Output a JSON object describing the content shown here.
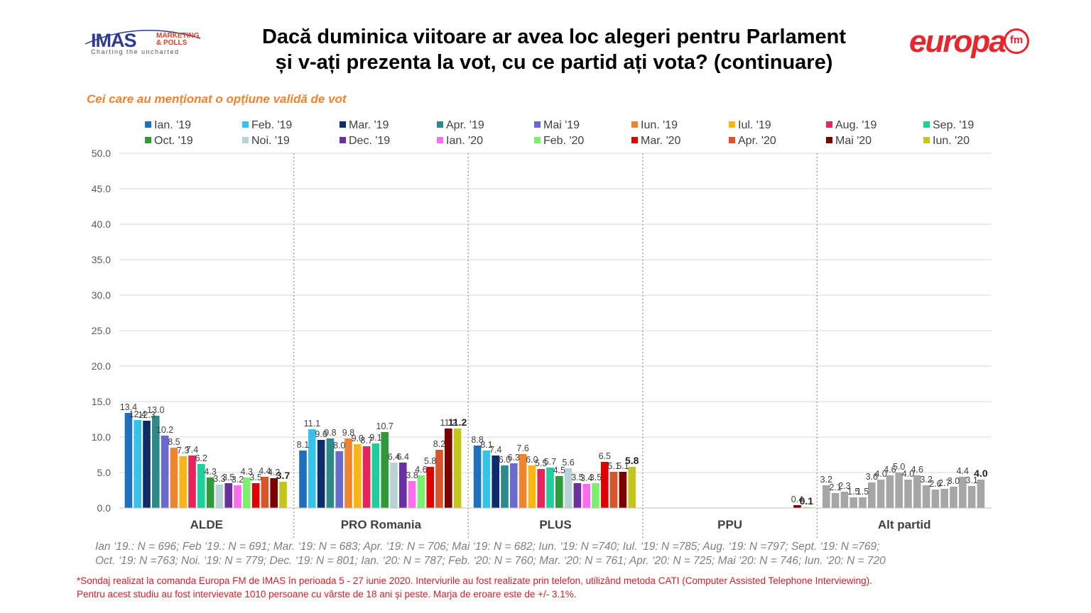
{
  "title": {
    "line1": "Dacă duminica viitoare ar avea loc alegeri pentru Parlament",
    "line2": "și v-ați prezenta la vot, cu ce partid ați vota? (continuare)"
  },
  "subtitle": "Cei care au menționat o opțiune validă de vot",
  "logos": {
    "imas": {
      "name": "IMAS",
      "sub1": "MARKETING",
      "sub2": "& POLLS",
      "tagline": "Charting the uncharted"
    },
    "europa": {
      "name": "europa",
      "fm": "fm"
    }
  },
  "chart_data": {
    "type": "bar",
    "ylim": [
      0,
      50
    ],
    "yticks": [
      "0.0",
      "5.0",
      "10.0",
      "15.0",
      "20.0",
      "25.0",
      "30.0",
      "35.0",
      "40.0",
      "45.0",
      "50.0"
    ],
    "grid": true,
    "legend_position": "top",
    "categories": [
      "ALDE",
      "PRO Romania",
      "PLUS",
      "PPU",
      "Alt partid"
    ],
    "series": [
      {
        "name": "Ian. '19",
        "color": "#1f6fbf"
      },
      {
        "name": "Feb. '19",
        "color": "#35c3ec"
      },
      {
        "name": "Mar. '19",
        "color": "#0d2c6b"
      },
      {
        "name": "Apr. '19",
        "color": "#2d8a8a"
      },
      {
        "name": "Mai '19",
        "color": "#6a6acd"
      },
      {
        "name": "Iun. '19",
        "color": "#f0842c"
      },
      {
        "name": "Iul. '19",
        "color": "#f8b514"
      },
      {
        "name": "Aug. '19",
        "color": "#e8245a"
      },
      {
        "name": "Sep. '19",
        "color": "#1fcf9b"
      },
      {
        "name": "Oct. '19",
        "color": "#2f9a3a"
      },
      {
        "name": "Noi. '19",
        "color": "#b8d2d8"
      },
      {
        "name": "Dec. '19",
        "color": "#6b2fa0"
      },
      {
        "name": "Ian. '20",
        "color": "#ff6cf0"
      },
      {
        "name": "Feb. '20",
        "color": "#7cf06c"
      },
      {
        "name": "Mar. '20",
        "color": "#e00000"
      },
      {
        "name": "Apr. '20",
        "color": "#d8542a"
      },
      {
        "name": "Mai '20",
        "color": "#7a0000"
      },
      {
        "name": "Iun. '20",
        "color": "#c6c61a"
      }
    ],
    "values": [
      [
        "13.4",
        "12.4",
        "12.3",
        "13.0",
        "10.2",
        "8.5",
        "7.3",
        "7.4",
        "6.2",
        "4.3",
        "3.3",
        "3.5",
        "3.2",
        "4.3",
        "3.5",
        "4.4",
        "4.2",
        "3.7"
      ],
      [
        "8.1",
        "11.1",
        "9.6",
        "9.8",
        "8.0",
        "9.8",
        "9.0",
        "8.7",
        "9.1",
        "10.7",
        "6.4",
        "6.4",
        "3.8",
        "4.6",
        "5.8",
        "8.2",
        "11.2",
        "11.2"
      ],
      [
        "8.8",
        "8.1",
        "7.4",
        "6.0",
        "6.3",
        "7.6",
        "6.0",
        "5.5",
        "5.7",
        "4.5",
        "5.6",
        "3.5",
        "3.4",
        "3.5",
        "6.5",
        "5.1",
        "5.1",
        "5.8"
      ],
      [
        "",
        "",
        "",
        "",
        "",
        "",
        "",
        "",
        "",
        "",
        "",
        "",
        "",
        "",
        "",
        "",
        "0.4",
        "0.1"
      ],
      [
        "3.2",
        "2.1",
        "2.3",
        "1.5",
        "1.5",
        "3.6",
        "4.0",
        "4.6",
        "5.0",
        "4.0",
        "4.6",
        "3.2",
        "2.6",
        "2.7",
        "3.0",
        "4.4",
        "3.1",
        "4.0"
      ]
    ],
    "alt_partid_color": "#a6a6a6"
  },
  "samples": {
    "line1": "Ian ‘19.: N = 696; Feb ‘19.: N = 691; Mar. ‘19: N = 683; Apr. ‘19: N = 706; Mai ‘19: N = 682; Iun. ‘19: N =740; Iul. ‘19: N =785; Aug. ‘19: N =797; Sept. ‘19: N =769;",
    "line2": "Oct. ‘19: N =763; Noi. ‘19: N = 779; Dec. ‘19: N = 801; Ian. ‘20: N = 787; Feb. ‘20: N = 760; Mar. ‘20: N = 761; Apr. ‘20: N = 725; Mai ‘20: N = 746; Iun. ‘20: N = 720"
  },
  "footnote": {
    "line1": "*Sondaj realizat la comanda Europa FM de IMAS în perioada  5 - 27 iunie 2020. Interviurile au fost realizate prin telefon, utilizând metoda CATI (Computer Assisted Telephone Interviewing).",
    "line2": "Pentru acest studiu au fost intervievate 1010 persoane cu vârste de 18 ani și peste. Marja de eroare este de +/- 3.1%."
  }
}
